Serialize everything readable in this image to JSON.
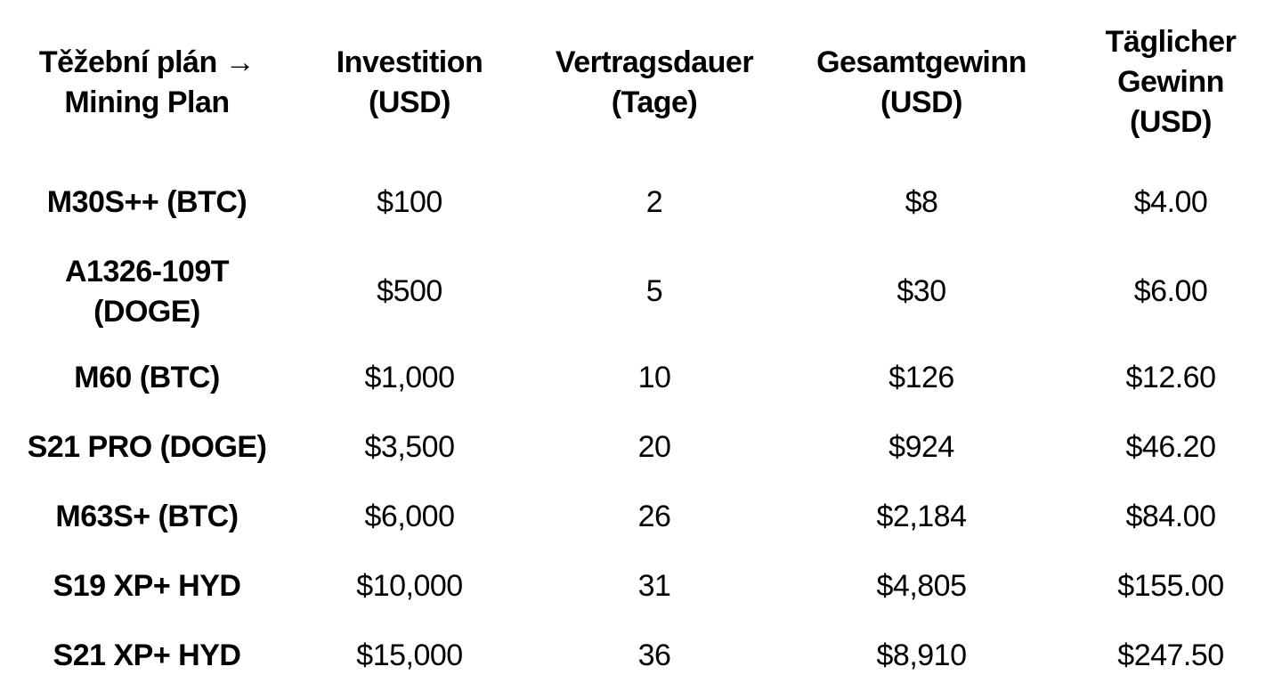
{
  "chart_data": {
    "type": "table",
    "title": "",
    "columns": [
      "Těžební plán → Mining Plan",
      "Investition (USD)",
      "Vertragsdauer (Tage)",
      "Gesamtgewinn (USD)",
      "Täglicher Gewinn (USD)"
    ],
    "rows": [
      [
        "M30S++ (BTC)",
        "$100",
        "2",
        "$8",
        "$4.00"
      ],
      [
        "A1326-109T (DOGE)",
        "$500",
        "5",
        "$30",
        "$6.00"
      ],
      [
        "M60 (BTC)",
        "$1,000",
        "10",
        "$126",
        "$12.60"
      ],
      [
        "S21 PRO (DOGE)",
        "$3,500",
        "20",
        "$924",
        "$46.20"
      ],
      [
        "M63S+ (BTC)",
        "$6,000",
        "26",
        "$2,184",
        "$84.00"
      ],
      [
        "S19 XP+ HYD",
        "$10,000",
        "31",
        "$4,805",
        "$155.00"
      ],
      [
        "S21 XP+ HYD",
        "$15,000",
        "36",
        "$8,910",
        "$247.50"
      ]
    ],
    "layout": {
      "grid": false,
      "borders": false,
      "text_color": "#000000",
      "background_color": "#ffffff",
      "header_bold": true,
      "first_column_bold": true
    }
  },
  "headers": [
    [
      "Těžební plán →",
      "Mining Plan"
    ],
    [
      "Investition",
      "(USD)"
    ],
    [
      "Vertragsdauer",
      "(Tage)"
    ],
    [
      "Gesamtgewinn",
      "(USD)"
    ],
    [
      "Täglicher",
      "Gewinn",
      "(USD)"
    ]
  ]
}
